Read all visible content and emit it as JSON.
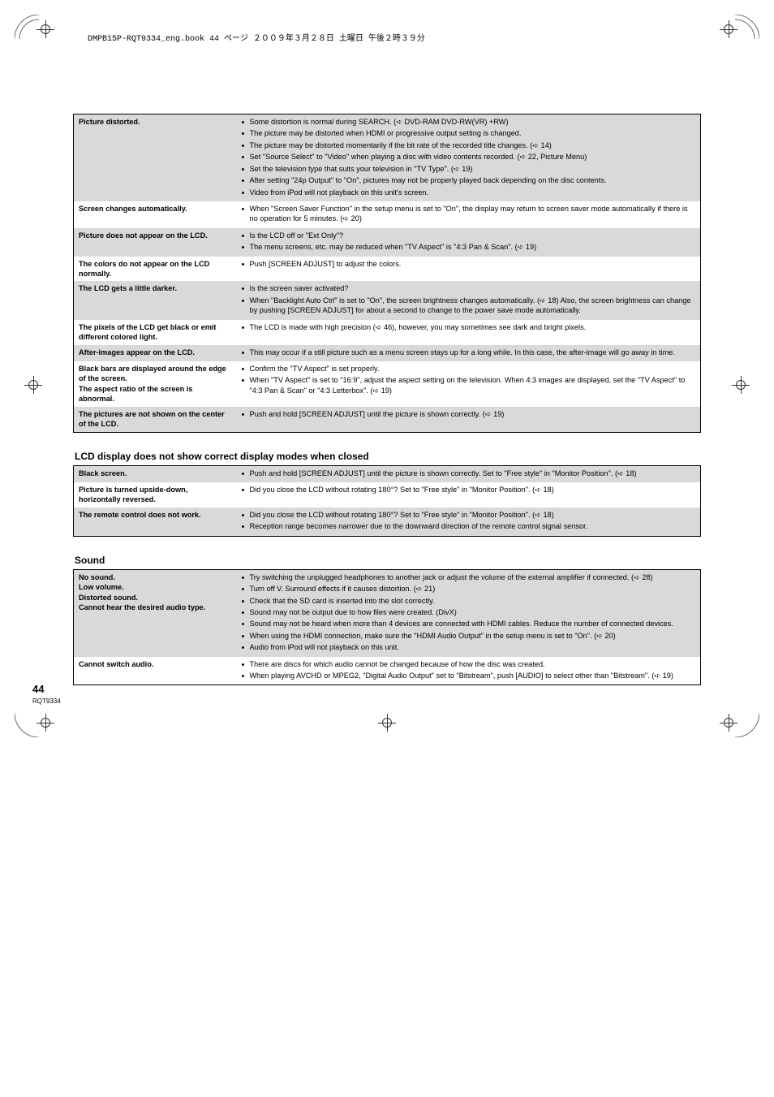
{
  "header_line": "DMPB15P-RQT9334_eng.book  44 ページ  ２００９年３月２８日  土曜日  午後２時３９分",
  "page_number": "44",
  "rqt": "RQT9334",
  "tables": {
    "picture": {
      "rows": [
        {
          "shade": "dark",
          "left": "Picture distorted.",
          "items": [
            "Some distortion is normal during SEARCH. (➪ DVD-RAM DVD-RW(VR) +RW)",
            "The picture may be distorted when HDMI or progressive output setting is changed.",
            "The picture may be distorted momentarily if the bit rate of the recorded title changes. (➪ 14)",
            "Set \"Source Select\" to \"Video\" when playing a disc with video contents recorded. (➪ 22, Picture Menu)",
            "Set the television type that suits your television in \"TV Type\". (➪ 19)",
            "After setting \"24p Output\" to \"On\", pictures may not be properly played back depending on the disc contents.",
            "Video from iPod will not playback on this unit's screen."
          ]
        },
        {
          "shade": "light",
          "left": "Screen changes automatically.",
          "items": [
            "When \"Screen Saver Function\" in the setup menu is set to \"On\", the display may return to screen saver mode automatically if there is no operation for 5 minutes. (➪ 20)"
          ]
        },
        {
          "shade": "dark",
          "left": "Picture does not appear on the LCD.",
          "items": [
            "Is the LCD off or \"Ext Only\"?",
            "The menu screens, etc. may be reduced when \"TV Aspect\" is \"4:3 Pan & Scan\". (➪ 19)"
          ]
        },
        {
          "shade": "light",
          "left": "The colors do not appear on the LCD normally.",
          "items": [
            "Push [SCREEN ADJUST] to adjust the colors."
          ]
        },
        {
          "shade": "dark",
          "left": "The LCD gets a little darker.",
          "items": [
            "Is the screen saver activated?",
            "When \"Backlight Auto Ctrl\" is set to \"On\", the screen brightness changes automatically. (➪ 18) Also, the screen brightness can change by pushing [SCREEN ADJUST] for about a second to change to the power save mode automatically."
          ]
        },
        {
          "shade": "light",
          "left": "The pixels of the LCD get black or emit different colored light.",
          "items": [
            "The LCD is made with high precision (➪ 46), however, you may sometimes see dark and bright pixels."
          ]
        },
        {
          "shade": "dark",
          "left": "After-images appear on the LCD.",
          "items": [
            "This may occur if a still picture such as a menu screen stays up for a long while. In this case, the after-image will go away in time."
          ]
        },
        {
          "shade": "light",
          "left": "Black bars are displayed around the edge of the screen.\nThe aspect ratio of the screen is abnormal.",
          "items": [
            "Confirm the \"TV Aspect\" is set properly.",
            "When \"TV Aspect\" is set to \"16:9\", adjust the aspect setting on the television. When 4:3 images are displayed, set the \"TV Aspect\" to \"4:3 Pan & Scan\" or \"4:3 Letterbox\". (➪ 19)"
          ]
        },
        {
          "shade": "dark",
          "left": "The pictures are not shown on the center of the LCD.",
          "items": [
            "Push and hold [SCREEN ADJUST] until the picture is shown correctly. (➪ 19)"
          ]
        }
      ]
    },
    "lcd_closed": {
      "title": "LCD display does not show correct display modes when closed",
      "rows": [
        {
          "shade": "dark",
          "left": "Black screen.",
          "items": [
            "Push and hold [SCREEN ADJUST] until the picture is shown correctly. Set to \"Free style\" in \"Monitor Position\". (➪ 18)"
          ]
        },
        {
          "shade": "light",
          "left": "Picture is turned upside-down, horizontally reversed.",
          "items": [
            "Did you close the LCD without rotating 180°? Set to \"Free style\" in \"Monitor Position\". (➪ 18)"
          ]
        },
        {
          "shade": "dark",
          "left": "The remote control does not work.",
          "items": [
            "Did you close the LCD without rotating 180°? Set to \"Free style\" in \"Monitor Position\". (➪ 18)",
            "Reception range becomes narrower due to the downward direction of the remote control signal sensor."
          ]
        }
      ]
    },
    "sound": {
      "title": "Sound",
      "rows": [
        {
          "shade": "dark",
          "left": "No sound.\nLow volume.\nDistorted sound.\nCannot hear the desired audio type.",
          "items": [
            "Try switching the unplugged headphones to another jack or adjust the volume of the external amplifier if connected. (➪ 28)",
            "Turn off V. Surround effects if it causes distortion. (➪ 21)",
            "Check that the SD card is inserted into the slot correctly.",
            "Sound may not be output due to how files were created. (DivX)",
            "Sound may not be heard when more than 4 devices are connected with HDMI cables. Reduce the number of connected devices.",
            "When using the HDMI connection, make sure the \"HDMI Audio Output\" in the setup menu is set to \"On\". (➪ 20)",
            "Audio from iPod will not playback on this unit."
          ]
        },
        {
          "shade": "light",
          "left": "Cannot switch audio.",
          "items": [
            "There are discs for which audio cannot be changed because of how the disc was created.",
            "When playing AVCHD or MPEG2, \"Digital Audio Output\" set to \"Bitstream\", push [AUDIO] to select other than \"Bitstream\". (➪ 19)"
          ]
        }
      ]
    }
  }
}
